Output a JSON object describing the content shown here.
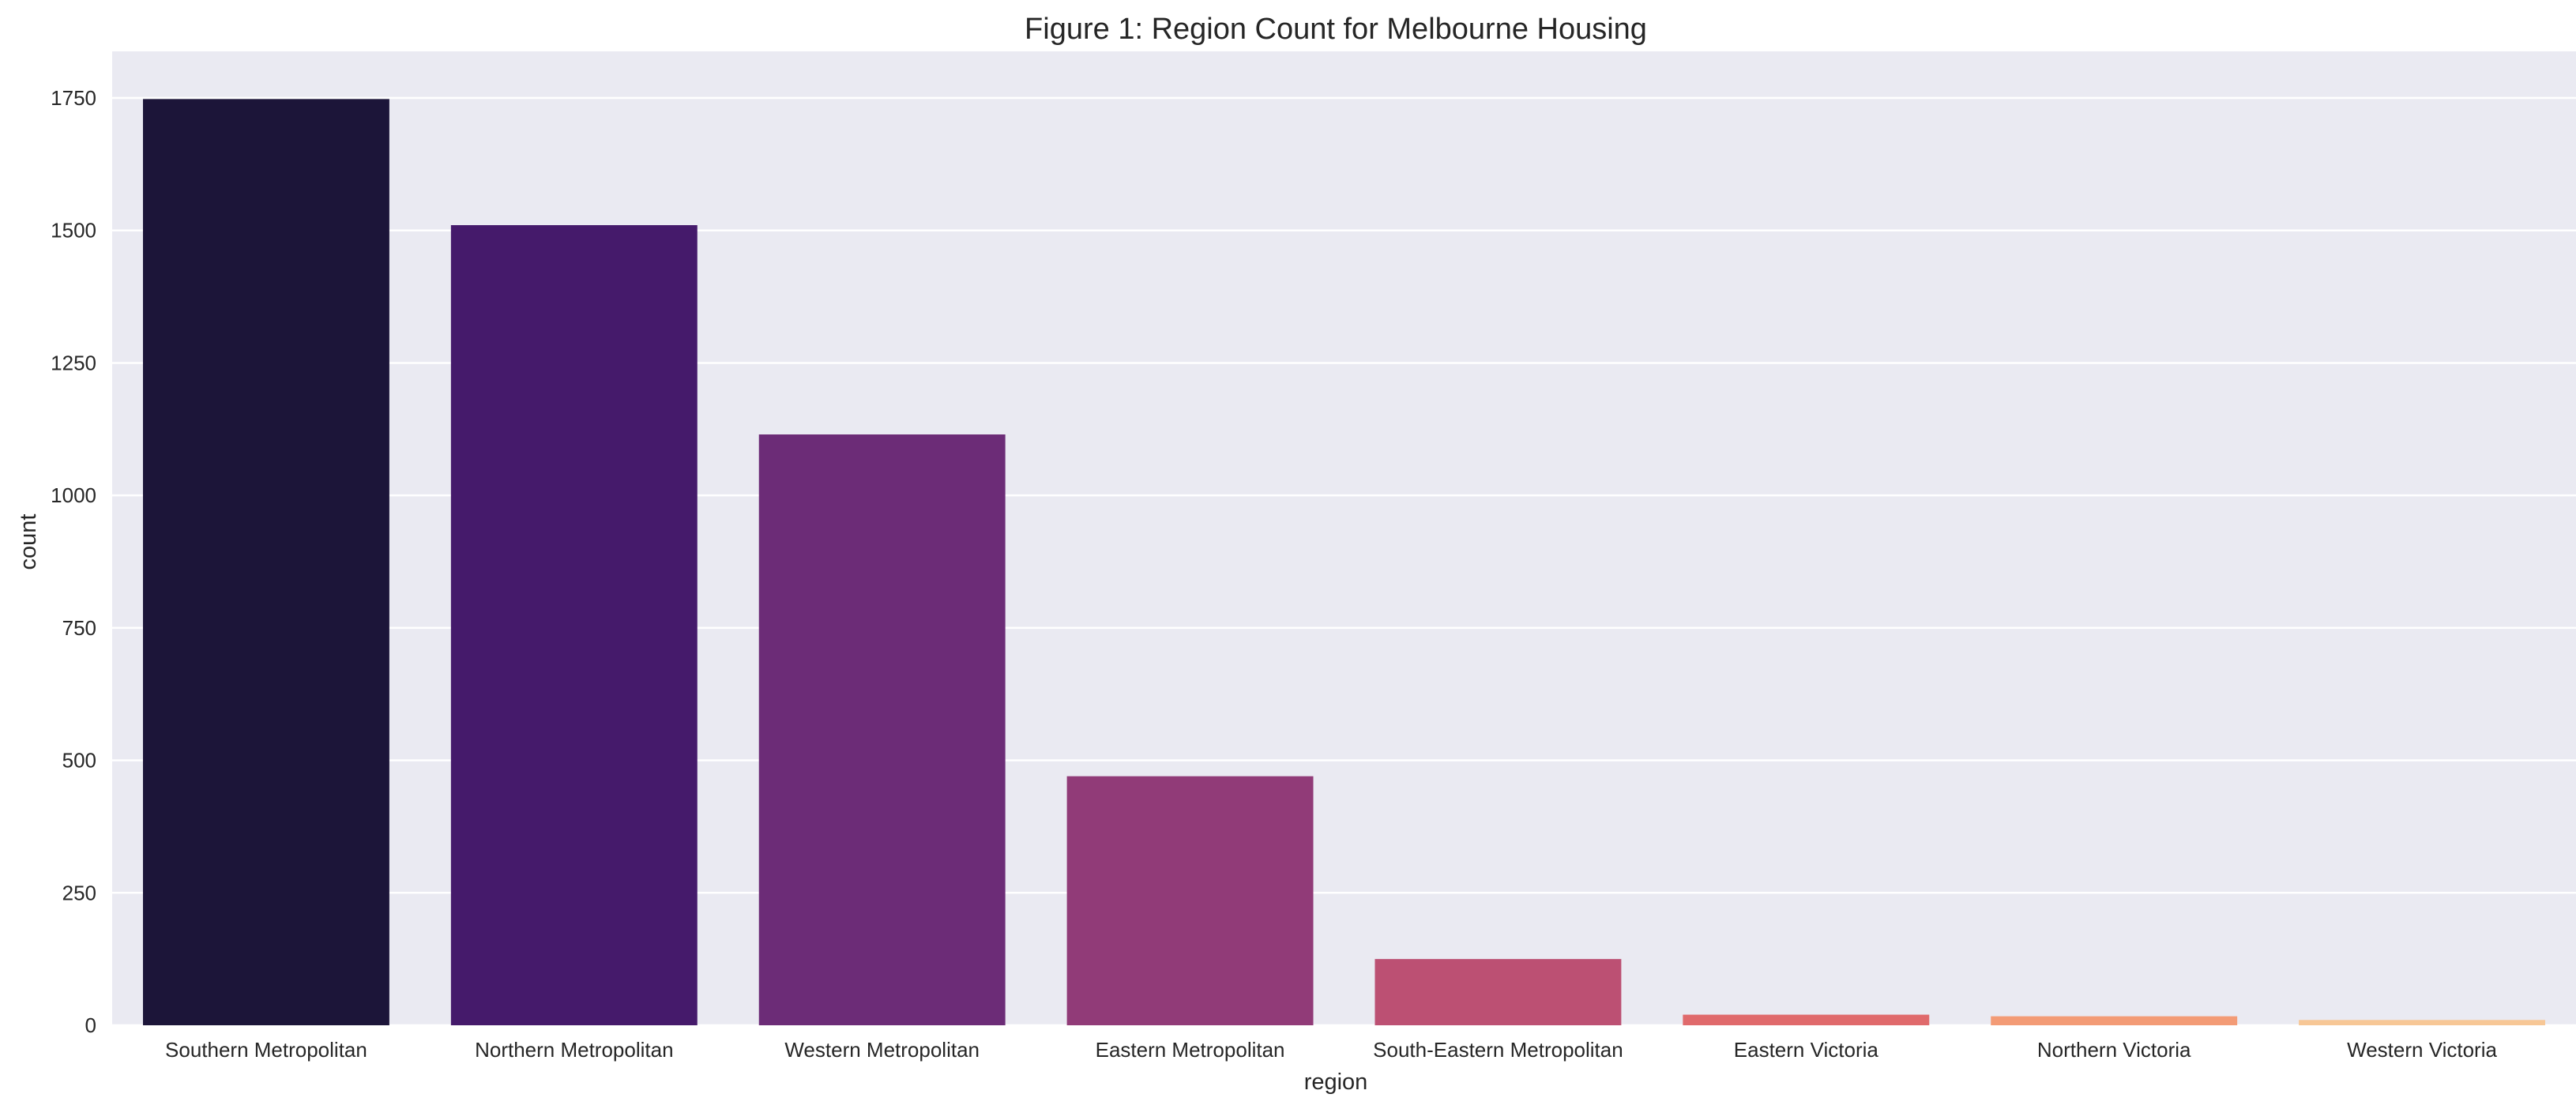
{
  "chart_data": {
    "type": "bar",
    "title": "Figure 1: Region Count for Melbourne Housing",
    "xlabel": "region",
    "ylabel": "count",
    "ylim": [
      0,
      1838
    ],
    "yticks": [
      0,
      250,
      500,
      750,
      1000,
      1250,
      1500,
      1750
    ],
    "grid": true,
    "background": "#eaeaf2",
    "categories": [
      "Southern Metropolitan",
      "Northern Metropolitan",
      "Western Metropolitan",
      "Eastern Metropolitan",
      "South-Eastern Metropolitan",
      "Eastern Victoria",
      "Northern Victoria",
      "Western Victoria"
    ],
    "values": [
      1748,
      1510,
      1115,
      470,
      125,
      20,
      17,
      10
    ],
    "colors": [
      "#1c1539",
      "#451a6b",
      "#6c2c77",
      "#913b78",
      "#bc5073",
      "#e06a6c",
      "#f39b76",
      "#f7c796"
    ]
  }
}
